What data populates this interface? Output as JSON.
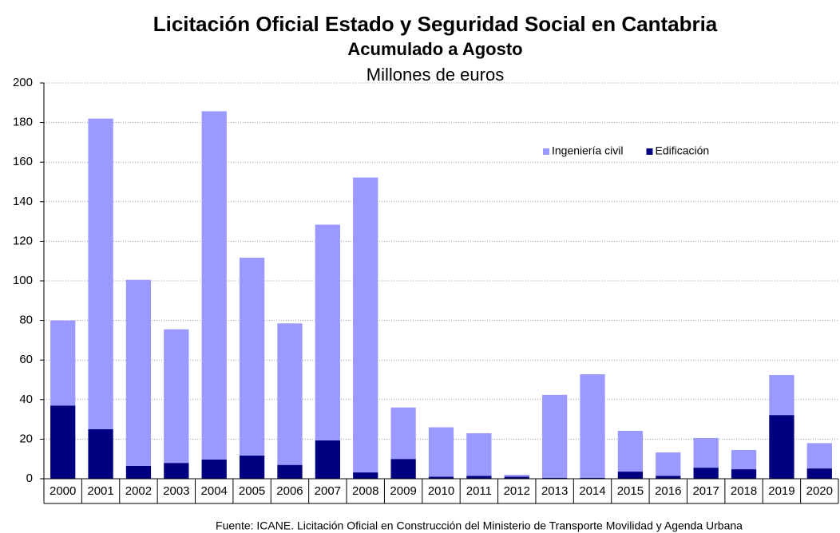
{
  "chart_data": {
    "type": "stacked_bar",
    "title": "Licitación Oficial Estado y Seguridad Social en Cantabria",
    "subtitle": "Acumulado a Agosto",
    "y_label": "Millones de euros",
    "source": "Fuente: ICANE. Licitación Oficial  en Construcción del Ministerio de Transporte Movilidad y Agenda Urbana",
    "categories": [
      "2000",
      "2001",
      "2002",
      "2003",
      "2004",
      "2005",
      "2006",
      "2007",
      "2008",
      "2009",
      "2010",
      "2011",
      "2012",
      "2013",
      "2014",
      "2015",
      "2016",
      "2017",
      "2018",
      "2019",
      "2020"
    ],
    "series": [
      {
        "name": "Ingeniería civil",
        "color": "#9999ff",
        "values": [
          43,
          157,
          94,
          67.5,
          176,
          100,
          71.5,
          109,
          149,
          26,
          25,
          21.5,
          1,
          42,
          52.4,
          20.6,
          11.8,
          15,
          9.7,
          20.2,
          12.8
        ]
      },
      {
        "name": "Edificación",
        "color": "#000080",
        "values": [
          37,
          25,
          6.5,
          8,
          9.7,
          11.7,
          7,
          19.4,
          3.2,
          10,
          1,
          1.5,
          1,
          0.4,
          0.4,
          3.6,
          1.5,
          5.6,
          4.8,
          32.2,
          5.2
        ]
      }
    ],
    "ylim": [
      0,
      200
    ],
    "yticks": [
      0,
      20,
      40,
      60,
      80,
      100,
      120,
      140,
      160,
      180,
      200
    ],
    "grid": true,
    "legend": "upper right"
  }
}
